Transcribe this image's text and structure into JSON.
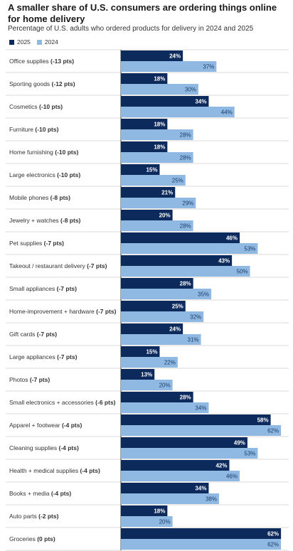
{
  "title": "A smaller share of U.S. consumers are ordering things online for home delivery",
  "subtitle": "Percentage of U.S. adults who ordered products for delivery in 2024 and 2025",
  "colors": {
    "y2025": "#0d2a5c",
    "y2024": "#8fb9e3",
    "grid": "#d8d8d8",
    "axis": "#444444"
  },
  "chart_data": {
    "type": "bar",
    "orientation": "horizontal",
    "xlim": [
      0,
      65
    ],
    "legend_placement": "top-left",
    "series": [
      {
        "name": "2025",
        "values": [
          24,
          18,
          34,
          18,
          18,
          15,
          21,
          20,
          46,
          43,
          28,
          25,
          24,
          15,
          13,
          28,
          58,
          49,
          42,
          34,
          18,
          62
        ]
      },
      {
        "name": "2024",
        "values": [
          37,
          30,
          44,
          28,
          28,
          25,
          29,
          28,
          53,
          50,
          35,
          32,
          31,
          22,
          20,
          34,
          62,
          53,
          46,
          38,
          20,
          62
        ]
      }
    ],
    "categories": [
      {
        "name": "Office supplies",
        "change": "(-13 pts)"
      },
      {
        "name": "Sporting goods",
        "change": "(-12 pts)"
      },
      {
        "name": "Cosmetics",
        "change": "(-10 pts)"
      },
      {
        "name": "Furniture",
        "change": "(-10 pts)"
      },
      {
        "name": "Home furnishing",
        "change": "(-10 pts)"
      },
      {
        "name": "Large electronics",
        "change": "(-10 pts)"
      },
      {
        "name": "Mobile phones",
        "change": "(-8 pts)"
      },
      {
        "name": "Jewelry + watches",
        "change": "(-8 pts)"
      },
      {
        "name": "Pet supplies",
        "change": "(-7 pts)"
      },
      {
        "name": "Takeout / restaurant delivery",
        "change": "(-7 pts)"
      },
      {
        "name": "Small appliances",
        "change": "(-7 pts)"
      },
      {
        "name": "Home-improvement + hardware",
        "change": "(-7 pts)"
      },
      {
        "name": "Gift cards",
        "change": "(-7 pts)"
      },
      {
        "name": "Large appliances",
        "change": "(-7 pts)"
      },
      {
        "name": "Photos",
        "change": "(-7 pts)"
      },
      {
        "name": "Small electronics + accessories",
        "change": "(-6 pts)"
      },
      {
        "name": "Apparel + footwear",
        "change": "(-4 pts)"
      },
      {
        "name": "Cleaning supplies",
        "change": "(-4 pts)"
      },
      {
        "name": "Health + medical supplies",
        "change": "(-4 pts)"
      },
      {
        "name": "Books + media",
        "change": "(-4 pts)"
      },
      {
        "name": "Auto parts",
        "change": "(-2 pts)"
      },
      {
        "name": "Groceries",
        "change": "(0 pts)"
      }
    ],
    "value_suffix": "%"
  }
}
